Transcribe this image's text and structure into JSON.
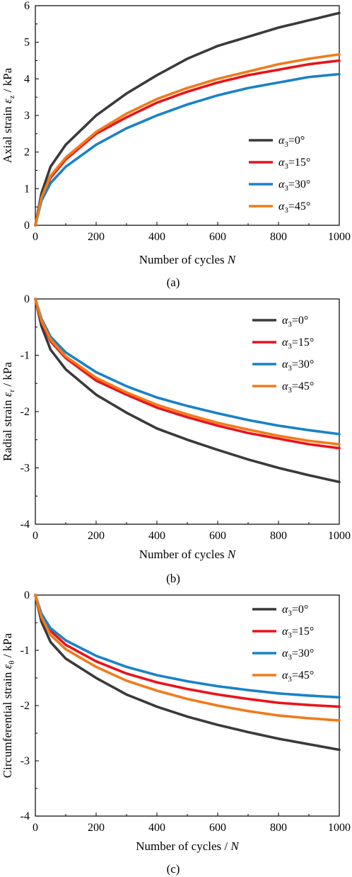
{
  "chart_data": [
    {
      "type": "line",
      "panel_label": "(a)",
      "xlabel": "Number of cycles N",
      "ylabel": "Axial strain εz / kPa",
      "xlim": [
        0,
        1000
      ],
      "ylim": [
        0,
        6
      ],
      "x_ticks": [
        "0",
        "200",
        "400",
        "600",
        "800",
        "1000"
      ],
      "y_ticks": [
        "0",
        "1",
        "2",
        "3",
        "4",
        "5",
        "6"
      ],
      "legend_position": "right-middle",
      "series": [
        {
          "name": "α3=0°",
          "color": "#3a3a3a",
          "x": [
            0,
            20,
            50,
            100,
            200,
            300,
            400,
            500,
            600,
            700,
            800,
            900,
            1000
          ],
          "y": [
            0,
            0.87,
            1.6,
            2.2,
            3.0,
            3.6,
            4.1,
            4.55,
            4.9,
            5.15,
            5.4,
            5.6,
            5.8
          ]
        },
        {
          "name": "α3=15°",
          "color": "#e8141b",
          "x": [
            0,
            20,
            50,
            100,
            200,
            300,
            400,
            500,
            600,
            700,
            800,
            900,
            1000
          ],
          "y": [
            0,
            0.72,
            1.3,
            1.8,
            2.5,
            2.95,
            3.35,
            3.65,
            3.9,
            4.1,
            4.25,
            4.4,
            4.5
          ]
        },
        {
          "name": "α3=30°",
          "color": "#1a82c6",
          "x": [
            0,
            20,
            50,
            100,
            200,
            300,
            400,
            500,
            600,
            700,
            800,
            900,
            1000
          ],
          "y": [
            0,
            0.67,
            1.15,
            1.6,
            2.2,
            2.65,
            3.0,
            3.3,
            3.55,
            3.75,
            3.9,
            4.05,
            4.13
          ]
        },
        {
          "name": "α3=45°",
          "color": "#f07b1a",
          "x": [
            0,
            20,
            50,
            100,
            200,
            300,
            400,
            500,
            600,
            700,
            800,
            900,
            1000
          ],
          "y": [
            0,
            0.75,
            1.35,
            1.85,
            2.55,
            3.05,
            3.45,
            3.75,
            4.0,
            4.2,
            4.4,
            4.55,
            4.67
          ]
        }
      ]
    },
    {
      "type": "line",
      "panel_label": "(b)",
      "xlabel": "Number of cycles N",
      "ylabel": "Radial strain εr / kPa",
      "xlim": [
        0,
        1000
      ],
      "ylim": [
        -4,
        0
      ],
      "x_ticks": [
        "0",
        "200",
        "400",
        "600",
        "800",
        "1000"
      ],
      "y_ticks": [
        "-4",
        "-3",
        "-2",
        "-1",
        "0"
      ],
      "legend_position": "top-right",
      "series": [
        {
          "name": "α3=0°",
          "color": "#3a3a3a",
          "x": [
            0,
            20,
            50,
            100,
            200,
            300,
            400,
            500,
            600,
            700,
            800,
            900,
            1000
          ],
          "y": [
            0,
            -0.48,
            -0.9,
            -1.25,
            -1.7,
            -2.02,
            -2.3,
            -2.5,
            -2.68,
            -2.85,
            -3.0,
            -3.13,
            -3.25
          ]
        },
        {
          "name": "α3=15°",
          "color": "#e8141b",
          "x": [
            0,
            20,
            50,
            100,
            200,
            300,
            400,
            500,
            600,
            700,
            800,
            900,
            1000
          ],
          "y": [
            0,
            -0.4,
            -0.75,
            -1.05,
            -1.45,
            -1.7,
            -1.93,
            -2.1,
            -2.25,
            -2.38,
            -2.48,
            -2.58,
            -2.65
          ]
        },
        {
          "name": "α3=30°",
          "color": "#1a82c6",
          "x": [
            0,
            20,
            50,
            100,
            200,
            300,
            400,
            500,
            600,
            700,
            800,
            900,
            1000
          ],
          "y": [
            0,
            -0.35,
            -0.67,
            -0.95,
            -1.3,
            -1.55,
            -1.75,
            -1.9,
            -2.03,
            -2.15,
            -2.25,
            -2.33,
            -2.4
          ]
        },
        {
          "name": "α3=45°",
          "color": "#f07b1a",
          "x": [
            0,
            20,
            50,
            100,
            200,
            300,
            400,
            500,
            600,
            700,
            800,
            900,
            1000
          ],
          "y": [
            0,
            -0.38,
            -0.72,
            -1.02,
            -1.4,
            -1.66,
            -1.88,
            -2.05,
            -2.2,
            -2.32,
            -2.43,
            -2.52,
            -2.58
          ]
        }
      ]
    },
    {
      "type": "line",
      "panel_label": "(c)",
      "xlabel": "Number of cycles / N",
      "ylabel": "Circumferential strain εθ / kPa",
      "xlim": [
        0,
        1000
      ],
      "ylim": [
        -4,
        0
      ],
      "x_ticks": [
        "0",
        "200",
        "400",
        "600",
        "800",
        "1000"
      ],
      "y_ticks": [
        "-4",
        "-3",
        "-2",
        "-1",
        "0"
      ],
      "legend_position": "top-right",
      "series": [
        {
          "name": "α3=0°",
          "color": "#3a3a3a",
          "x": [
            0,
            20,
            50,
            100,
            200,
            300,
            400,
            500,
            600,
            700,
            800,
            900,
            1000
          ],
          "y": [
            0,
            -0.48,
            -0.85,
            -1.15,
            -1.5,
            -1.8,
            -2.02,
            -2.2,
            -2.35,
            -2.48,
            -2.6,
            -2.7,
            -2.8
          ]
        },
        {
          "name": "α3=15°",
          "color": "#e8141b",
          "x": [
            0,
            20,
            50,
            100,
            200,
            300,
            400,
            500,
            600,
            700,
            800,
            900,
            1000
          ],
          "y": [
            0,
            -0.38,
            -0.65,
            -0.9,
            -1.2,
            -1.42,
            -1.58,
            -1.7,
            -1.8,
            -1.88,
            -1.95,
            -1.99,
            -2.02
          ]
        },
        {
          "name": "α3=30°",
          "color": "#1a82c6",
          "x": [
            0,
            20,
            50,
            100,
            200,
            300,
            400,
            500,
            600,
            700,
            800,
            900,
            1000
          ],
          "y": [
            0,
            -0.34,
            -0.6,
            -0.82,
            -1.1,
            -1.3,
            -1.45,
            -1.56,
            -1.65,
            -1.72,
            -1.78,
            -1.82,
            -1.85
          ]
        },
        {
          "name": "α3=45°",
          "color": "#f07b1a",
          "x": [
            0,
            20,
            50,
            100,
            200,
            300,
            400,
            500,
            600,
            700,
            800,
            900,
            1000
          ],
          "y": [
            0,
            -0.4,
            -0.72,
            -0.98,
            -1.3,
            -1.55,
            -1.73,
            -1.88,
            -2.0,
            -2.1,
            -2.18,
            -2.23,
            -2.27
          ]
        }
      ]
    }
  ]
}
